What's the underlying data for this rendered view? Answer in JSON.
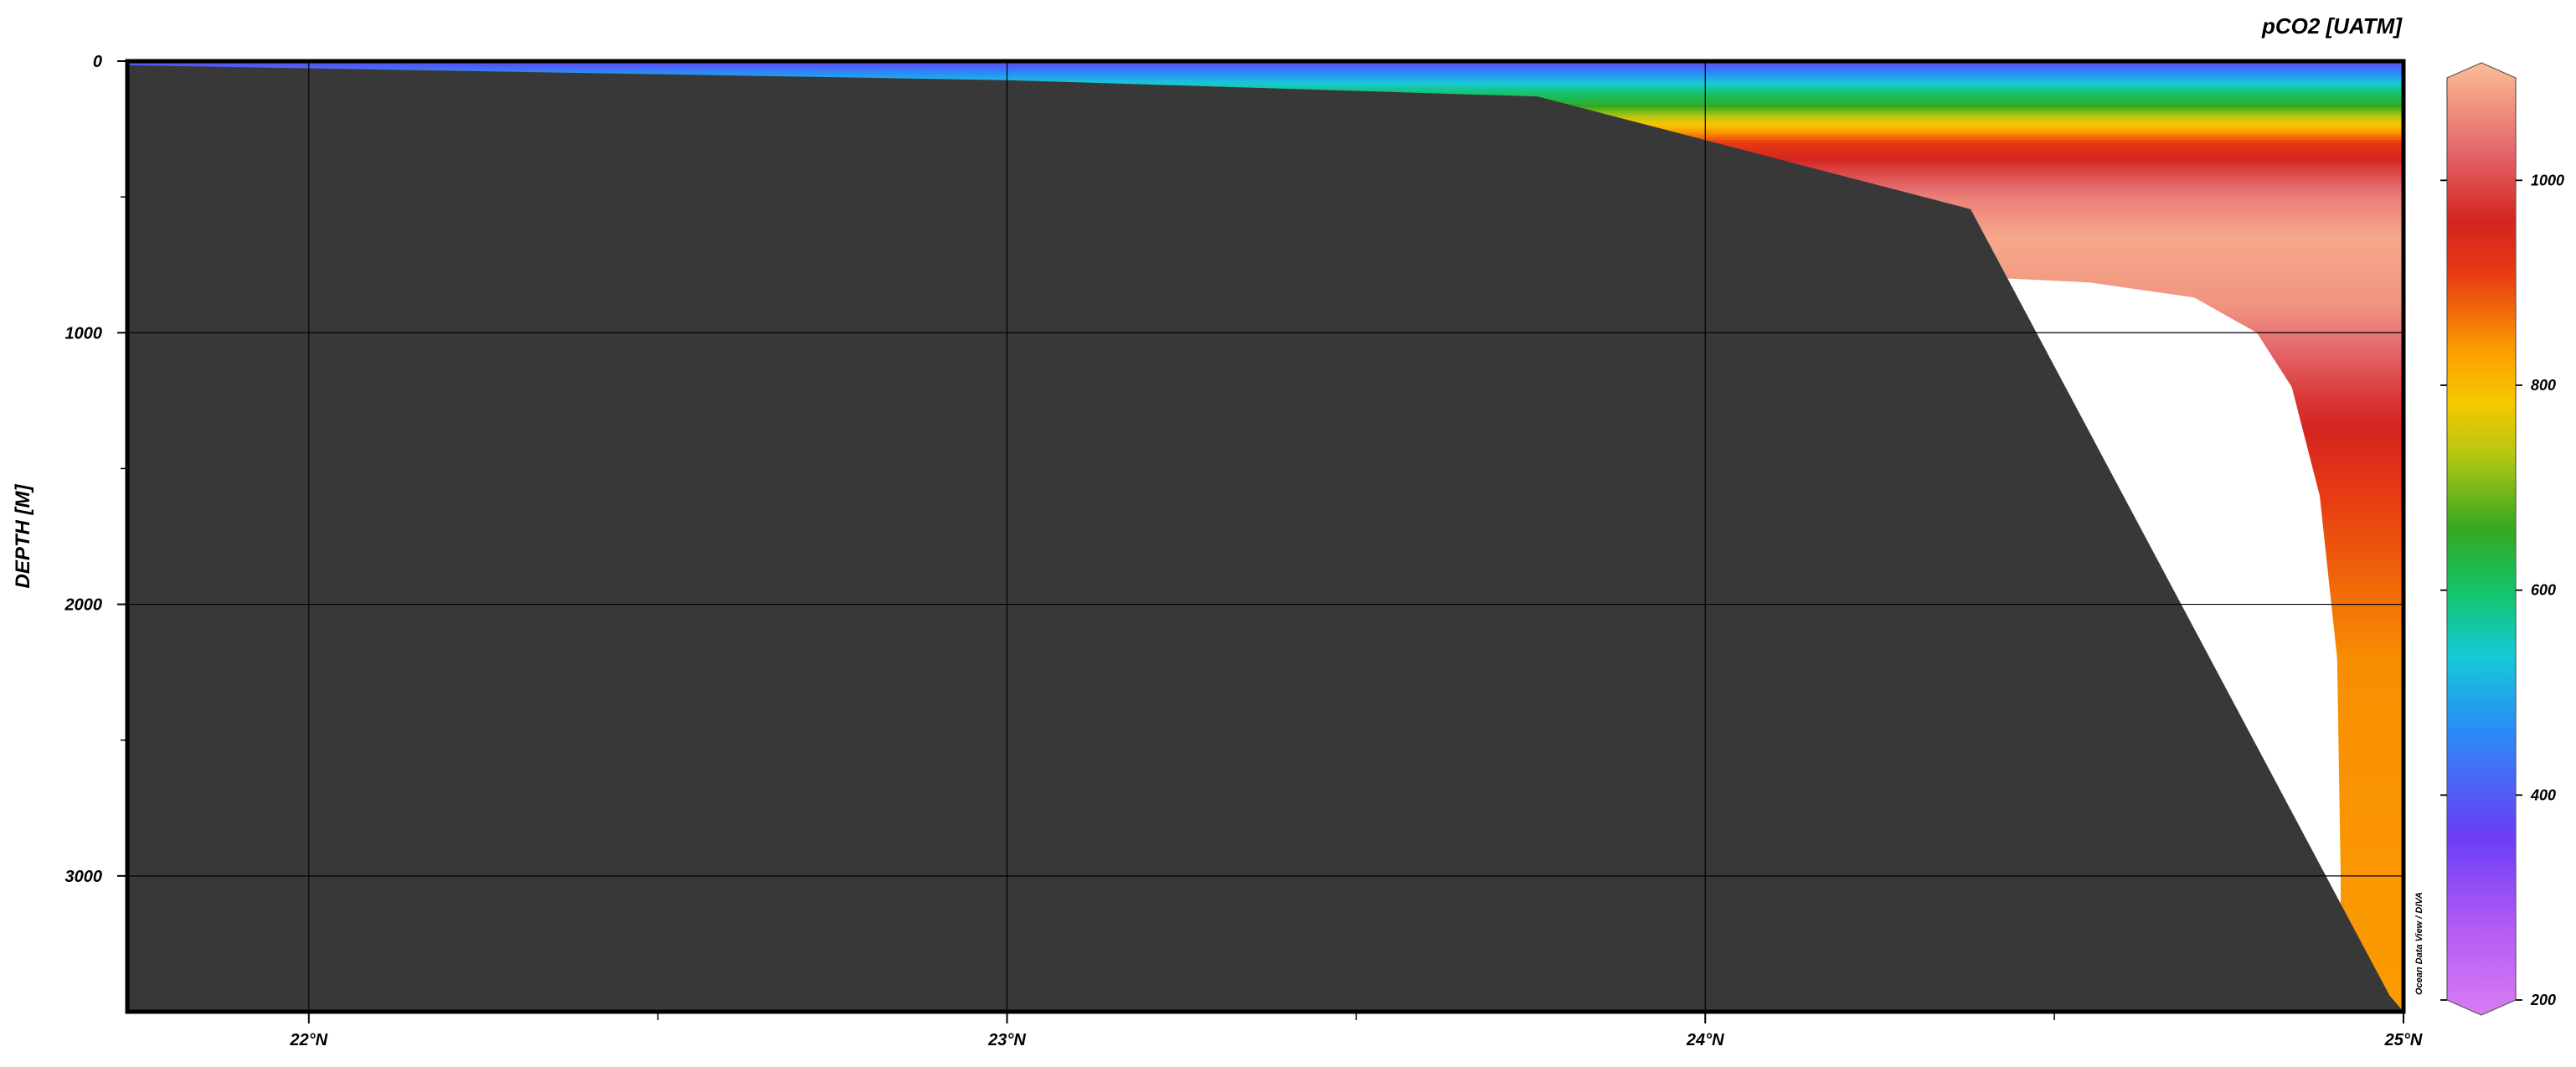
{
  "chart_data": {
    "type": "heatmap",
    "title": "",
    "xlabel": "",
    "ylabel": "DEPTH [M]",
    "xlim": [
      21.74,
      25.0
    ],
    "ylim": [
      3500,
      0
    ],
    "x_ticks": [
      {
        "value": 22,
        "label": "22°N"
      },
      {
        "value": 23,
        "label": "23°N"
      },
      {
        "value": 24,
        "label": "24°N"
      },
      {
        "value": 25,
        "label": "25°N"
      }
    ],
    "x_minor_ticks": [
      22.5,
      23.5,
      24.5
    ],
    "y_ticks": [
      {
        "value": 0,
        "label": "0"
      },
      {
        "value": 1000,
        "label": "1000"
      },
      {
        "value": 2000,
        "label": "2000"
      },
      {
        "value": 3000,
        "label": "3000"
      }
    ],
    "y_minor_ticks": [
      500,
      1500,
      2500
    ],
    "grid": true,
    "colorbar": {
      "title": "pCO2 [UATM]",
      "range": [
        200,
        1100
      ],
      "ticks": [
        {
          "value": 200,
          "label": "200"
        },
        {
          "value": 400,
          "label": "400"
        },
        {
          "value": 600,
          "label": "600"
        },
        {
          "value": 800,
          "label": "800"
        },
        {
          "value": 1000,
          "label": "1000"
        }
      ],
      "colors": [
        {
          "value": 200,
          "color": "#d87cf2"
        },
        {
          "value": 280,
          "color": "#b55cf5"
        },
        {
          "value": 370,
          "color": "#6a3df5"
        },
        {
          "value": 470,
          "color": "#2a8cf7"
        },
        {
          "value": 540,
          "color": "#17c9d8"
        },
        {
          "value": 600,
          "color": "#14c46a"
        },
        {
          "value": 660,
          "color": "#34a821"
        },
        {
          "value": 730,
          "color": "#b6c712"
        },
        {
          "value": 780,
          "color": "#f7c800"
        },
        {
          "value": 830,
          "color": "#fb9c00"
        },
        {
          "value": 900,
          "color": "#e83a12"
        },
        {
          "value": 950,
          "color": "#d42420"
        },
        {
          "value": 1020,
          "color": "#e56a6e"
        },
        {
          "value": 1100,
          "color": "#fcbd94"
        }
      ]
    },
    "bathymetry": [
      {
        "lat": 21.74,
        "depth": 15
      },
      {
        "lat": 23.0,
        "depth": 70
      },
      {
        "lat": 23.76,
        "depth": 130
      },
      {
        "lat": 24.38,
        "depth": 545
      },
      {
        "lat": 24.98,
        "depth": 3440
      },
      {
        "lat": 25.0,
        "depth": 3500
      }
    ],
    "no_data_region": [
      {
        "lat": 24.43,
        "depth": 800
      },
      {
        "lat": 24.55,
        "depth": 815
      },
      {
        "lat": 24.7,
        "depth": 870
      },
      {
        "lat": 24.79,
        "depth": 1000
      },
      {
        "lat": 24.84,
        "depth": 1200
      },
      {
        "lat": 24.88,
        "depth": 1600
      },
      {
        "lat": 24.905,
        "depth": 2200
      },
      {
        "lat": 24.91,
        "depth": 3000
      },
      {
        "lat": 24.91,
        "depth": 3010
      }
    ],
    "profile": [
      {
        "depth": 0,
        "value": 370
      },
      {
        "depth": 30,
        "value": 440
      },
      {
        "depth": 80,
        "value": 540
      },
      {
        "depth": 120,
        "value": 600
      },
      {
        "depth": 160,
        "value": 650
      },
      {
        "depth": 220,
        "value": 760
      },
      {
        "depth": 300,
        "value": 900
      },
      {
        "depth": 400,
        "value": 980
      },
      {
        "depth": 500,
        "value": 1040
      },
      {
        "depth": 650,
        "value": 1080
      },
      {
        "depth": 900,
        "value": 1060
      },
      {
        "depth": 1200,
        "value": 980
      },
      {
        "depth": 1600,
        "value": 900
      },
      {
        "depth": 2200,
        "value": 840
      },
      {
        "depth": 3500,
        "value": 830
      }
    ],
    "credit": "Ocean Data View / DIVA"
  }
}
